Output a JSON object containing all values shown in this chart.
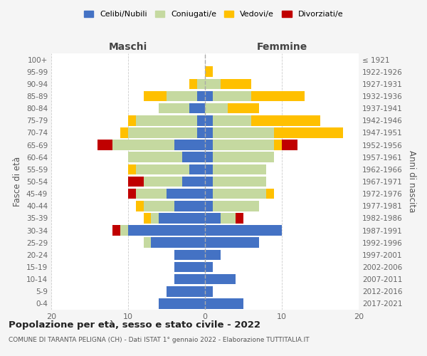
{
  "age_groups": [
    "0-4",
    "5-9",
    "10-14",
    "15-19",
    "20-24",
    "25-29",
    "30-34",
    "35-39",
    "40-44",
    "45-49",
    "50-54",
    "55-59",
    "60-64",
    "65-69",
    "70-74",
    "75-79",
    "80-84",
    "85-89",
    "90-94",
    "95-99",
    "100+"
  ],
  "birth_years": [
    "2017-2021",
    "2012-2016",
    "2007-2011",
    "2002-2006",
    "1997-2001",
    "1992-1996",
    "1987-1991",
    "1982-1986",
    "1977-1981",
    "1972-1976",
    "1967-1971",
    "1962-1966",
    "1957-1961",
    "1952-1956",
    "1947-1951",
    "1942-1946",
    "1937-1941",
    "1932-1936",
    "1927-1931",
    "1922-1926",
    "≤ 1921"
  ],
  "maschi": {
    "celibe": [
      6,
      5,
      4,
      4,
      4,
      7,
      10,
      6,
      4,
      5,
      3,
      2,
      3,
      4,
      1,
      1,
      2,
      1,
      0,
      0,
      0
    ],
    "coniugato": [
      0,
      0,
      0,
      0,
      0,
      1,
      1,
      1,
      4,
      4,
      5,
      7,
      7,
      8,
      9,
      8,
      4,
      4,
      1,
      0,
      0
    ],
    "vedovo": [
      0,
      0,
      0,
      0,
      0,
      0,
      0,
      1,
      1,
      0,
      0,
      1,
      0,
      0,
      1,
      1,
      0,
      3,
      1,
      0,
      0
    ],
    "divorziato": [
      0,
      0,
      0,
      0,
      0,
      0,
      1,
      0,
      0,
      1,
      2,
      0,
      0,
      2,
      0,
      0,
      0,
      0,
      0,
      0,
      0
    ]
  },
  "femmine": {
    "nubile": [
      5,
      1,
      4,
      1,
      2,
      7,
      10,
      2,
      1,
      1,
      1,
      1,
      1,
      1,
      1,
      1,
      0,
      1,
      0,
      0,
      0
    ],
    "coniugata": [
      0,
      0,
      0,
      0,
      0,
      0,
      0,
      2,
      6,
      7,
      7,
      7,
      8,
      8,
      8,
      5,
      3,
      5,
      2,
      0,
      0
    ],
    "vedova": [
      0,
      0,
      0,
      0,
      0,
      0,
      0,
      0,
      0,
      1,
      0,
      0,
      0,
      1,
      9,
      9,
      4,
      7,
      4,
      1,
      0
    ],
    "divorziata": [
      0,
      0,
      0,
      0,
      0,
      0,
      0,
      1,
      0,
      0,
      0,
      0,
      0,
      2,
      0,
      0,
      0,
      0,
      0,
      0,
      0
    ]
  },
  "colors": {
    "celibe": "#4472c4",
    "coniugato": "#c5d9a0",
    "vedovo": "#ffc000",
    "divorziato": "#c00000"
  },
  "xlim": 20,
  "title": "Popolazione per età, sesso e stato civile - 2022",
  "subtitle": "COMUNE DI TARANTA PELIGNA (CH) - Dati ISTAT 1° gennaio 2022 - Elaborazione TUTTITALIA.IT",
  "ylabel_left": "Fasce di età",
  "ylabel_right": "Anni di nascita",
  "xlabel_left": "Maschi",
  "xlabel_right": "Femmine",
  "legend_labels": [
    "Celibi/Nubili",
    "Coniugati/e",
    "Vedovi/e",
    "Divorziati/e"
  ],
  "bg_color": "#f5f5f5",
  "plot_bg": "#ffffff"
}
